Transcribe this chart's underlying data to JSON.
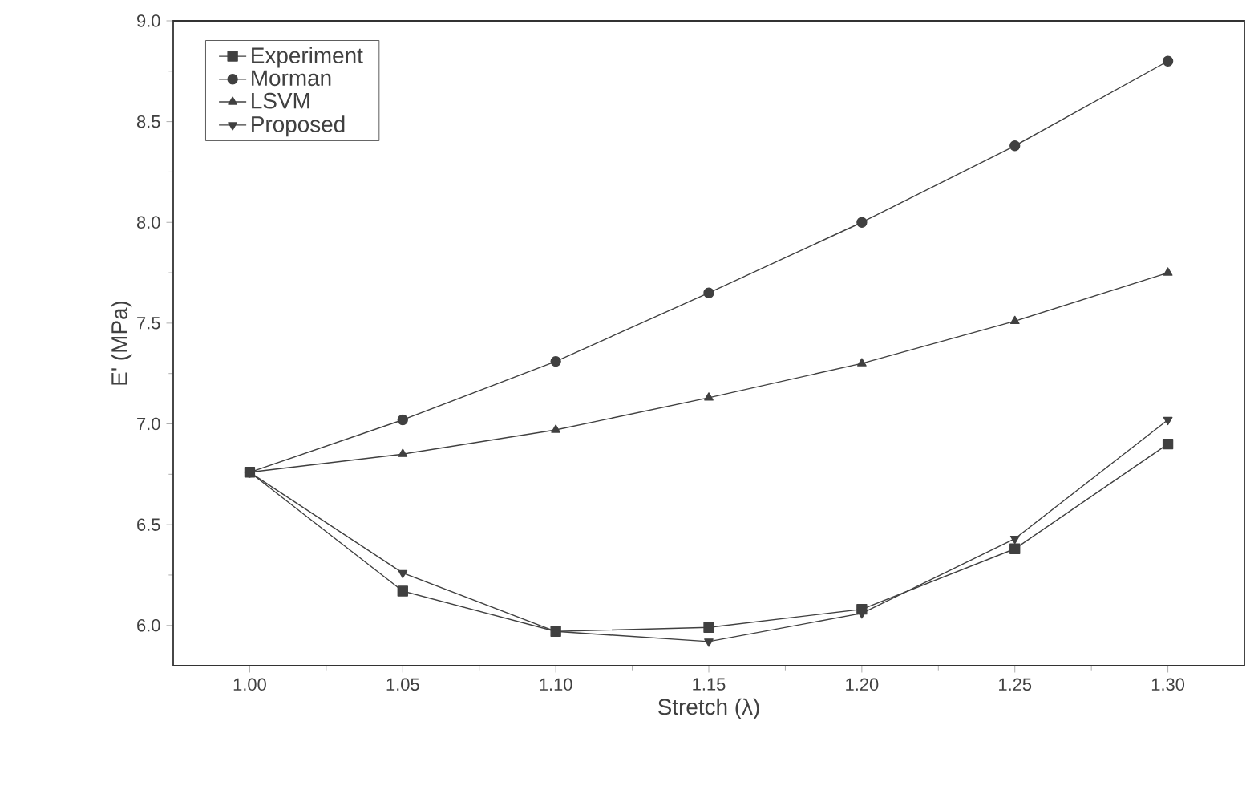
{
  "chart_data": {
    "type": "line",
    "xlabel": "Stretch (λ)",
    "ylabel": "E' (MPa)",
    "x": [
      1.0,
      1.05,
      1.1,
      1.15,
      1.2,
      1.25,
      1.3
    ],
    "series": [
      {
        "name": "Experiment",
        "color": "#404040",
        "marker": "square",
        "values": [
          6.76,
          6.17,
          5.97,
          5.99,
          6.08,
          6.38,
          6.9
        ]
      },
      {
        "name": "Morman",
        "color": "#404040",
        "marker": "circle",
        "values": [
          6.76,
          7.02,
          7.31,
          7.65,
          8.0,
          8.38,
          8.8
        ]
      },
      {
        "name": "LSVM",
        "color": "#404040",
        "marker": "triangle",
        "values": [
          6.76,
          6.85,
          6.97,
          7.13,
          7.3,
          7.51,
          7.75
        ]
      },
      {
        "name": "Proposed",
        "color": "#404040",
        "marker": "triangle-down",
        "values": [
          6.76,
          6.26,
          5.97,
          5.92,
          6.06,
          6.43,
          7.02
        ]
      }
    ],
    "xlim": [
      0.975,
      1.325
    ],
    "ylim": [
      5.8,
      9.0
    ],
    "xticks": [
      {
        "value": 1.0,
        "label": "1.00"
      },
      1.05,
      {
        "value": 1.1,
        "label": "1.10"
      },
      1.15,
      {
        "value": 1.2,
        "label": "1.20"
      },
      1.25,
      {
        "value": 1.3,
        "label": "1.30"
      }
    ],
    "yticks": [
      {
        "value": 6.0,
        "label": "6.0"
      },
      6.5,
      {
        "value": 7.0,
        "label": "7.0"
      },
      7.5,
      {
        "value": 8.0,
        "label": "8.0"
      },
      8.5,
      {
        "value": 9.0,
        "label": "9.0"
      }
    ],
    "legend": "top left",
    "grid": false,
    "line_style": "solid"
  }
}
